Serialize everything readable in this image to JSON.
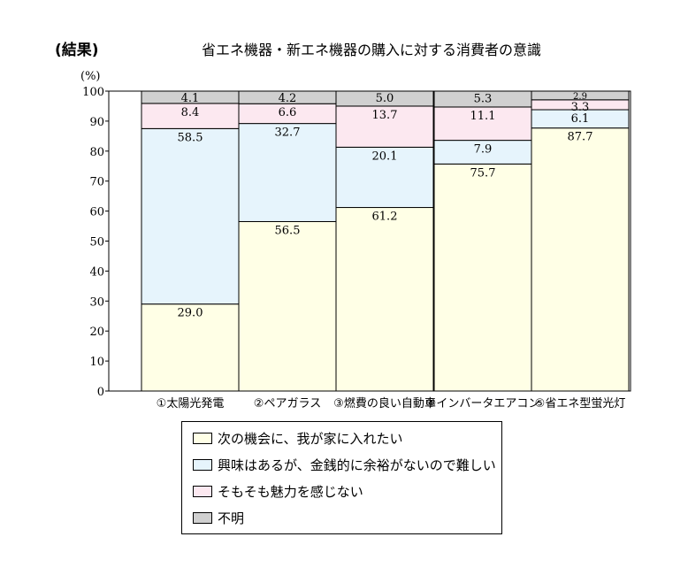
{
  "chart_data": {
    "type": "bar",
    "stacked": true,
    "heading": "(結果)",
    "title": "省エネ機器・新エネ機器の購入に対する消費者の意識",
    "ylabel": "(%)",
    "ylim": [
      0,
      100
    ],
    "yticks": [
      "0",
      "10",
      "20",
      "30",
      "40",
      "50",
      "60",
      "70",
      "80",
      "90",
      "100"
    ],
    "categories": [
      "①太陽光発電",
      "②ペアガラス",
      "③燃費の良い自動車",
      "④インバータエアコン",
      "⑤省エネ型蛍光灯"
    ],
    "series": [
      {
        "name": "次の機会に、我が家に入れたい",
        "color": "#ffffe6",
        "values": [
          29.0,
          56.5,
          61.2,
          75.7,
          87.7
        ],
        "labels": [
          "29.0",
          "56.5",
          "61.2",
          "75.7",
          "87.7"
        ]
      },
      {
        "name": "興味はあるが、金銭的に余裕がないので難しい",
        "color": "#e6f4fc",
        "values": [
          58.5,
          32.7,
          20.1,
          7.9,
          6.1
        ],
        "labels": [
          "58.5",
          "32.7",
          "20.1",
          "7.9",
          "6.1"
        ]
      },
      {
        "name": "そもそも魅力を感じない",
        "color": "#fce8f0",
        "values": [
          8.4,
          6.6,
          13.7,
          11.1,
          3.3
        ],
        "labels": [
          "8.4",
          "6.6",
          "13.7",
          "11.1",
          "3.3"
        ]
      },
      {
        "name": "不明",
        "color": "#d0d0d0",
        "values": [
          4.1,
          4.2,
          5.0,
          5.3,
          2.9
        ],
        "labels": [
          "4.1",
          "4.2",
          "5.0",
          "5.3",
          "2.9"
        ]
      }
    ],
    "connector_lines": true,
    "grid": false,
    "legend_position": "bottom"
  }
}
